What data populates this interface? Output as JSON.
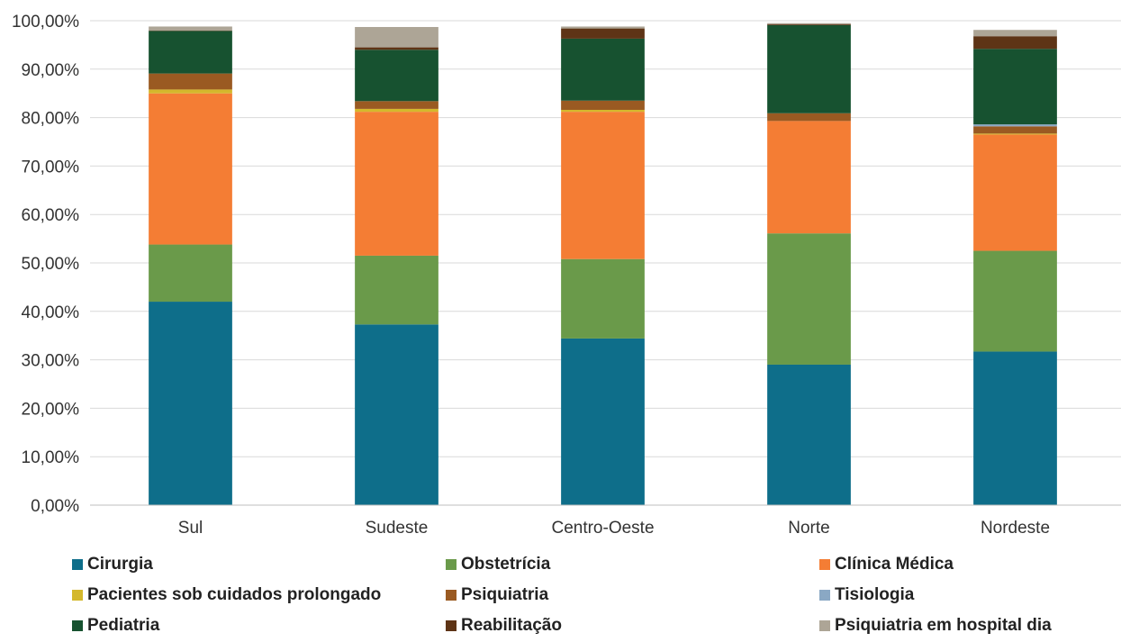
{
  "chart_data": {
    "type": "bar",
    "stacked": true,
    "categories": [
      "Sul",
      "Sudeste",
      "Centro-Oeste",
      "Norte",
      "Nordeste"
    ],
    "ylim": [
      0,
      100
    ],
    "yticks": [
      "0,00%",
      "10,00%",
      "20,00%",
      "30,00%",
      "40,00%",
      "50,00%",
      "60,00%",
      "70,00%",
      "80,00%",
      "90,00%",
      "100,00%"
    ],
    "grid": true,
    "legend_position": "bottom",
    "series": [
      {
        "name": "Cirurgia",
        "color": "#0e6e8a",
        "values": [
          42.0,
          37.3,
          34.4,
          29.0,
          31.7
        ]
      },
      {
        "name": "Obstetrícia",
        "color": "#6a9a4a",
        "values": [
          11.8,
          14.2,
          16.4,
          27.1,
          20.8
        ]
      },
      {
        "name": "Clínica Médica",
        "color": "#f47d34",
        "values": [
          31.2,
          29.7,
          30.4,
          23.2,
          24.0
        ]
      },
      {
        "name": "Pacientes sob cuidados prolongado",
        "color": "#d4b82c",
        "values": [
          0.8,
          0.6,
          0.4,
          0.0,
          0.2
        ]
      },
      {
        "name": "Psiquiatria",
        "color": "#9a5a22",
        "values": [
          3.3,
          1.6,
          1.9,
          1.6,
          1.5
        ]
      },
      {
        "name": "Tisiologia",
        "color": "#8aa8c4",
        "values": [
          0.0,
          0.0,
          0.0,
          0.0,
          0.4
        ]
      },
      {
        "name": "Pediatria",
        "color": "#175230",
        "values": [
          8.8,
          10.6,
          12.8,
          18.2,
          15.6
        ]
      },
      {
        "name": "Reabilitação",
        "color": "#5e3416",
        "values": [
          0.1,
          0.5,
          2.1,
          0.2,
          2.6
        ]
      },
      {
        "name": "Psiquiatria em hospital dia",
        "color": "#ada596",
        "values": [
          0.8,
          4.2,
          0.4,
          0.2,
          1.3
        ]
      }
    ]
  }
}
